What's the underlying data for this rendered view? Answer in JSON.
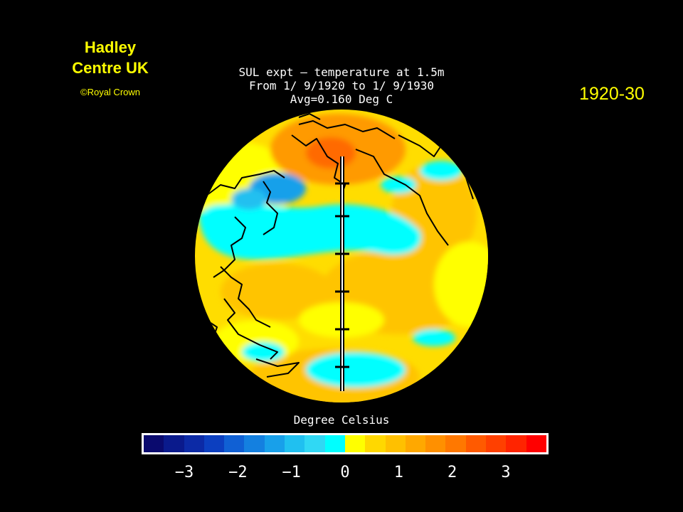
{
  "credit": {
    "line1": "Hadley",
    "line2": "Centre UK",
    "copyright": "©Royal Crown"
  },
  "period_label": "1920-30",
  "plot_title": {
    "line1": "SUL expt — temperature at 1.5m",
    "line2": "From 1/ 9/1920 to 1/ 9/1930",
    "line3": "Avg=0.160 Deg C"
  },
  "legend": {
    "title": "Degree Celsius",
    "ticks": [
      "−3",
      "−2",
      "−1",
      "0",
      "1",
      "2",
      "3"
    ],
    "colors": [
      "#0a0a6e",
      "#0a1a8c",
      "#0c2aa6",
      "#0c3fc0",
      "#1060d4",
      "#1480e0",
      "#18a0ea",
      "#20c0f0",
      "#30d8f4",
      "#00ffff",
      "#ffff00",
      "#ffd800",
      "#ffc000",
      "#ffa800",
      "#ff9000",
      "#ff7800",
      "#ff5a00",
      "#ff4000",
      "#ff2400",
      "#ff0000"
    ]
  },
  "map": {
    "projection": "orthographic globe centred on the North Pacific",
    "variable": "temperature anomaly at 1.5m",
    "colors": {
      "warm_yellow": "#ffff00",
      "warm_amber": "#ffcc00",
      "warm_orange": "#ff8000",
      "cool_cyan": "#00ffff",
      "cool_blue": "#18a0ea"
    }
  }
}
